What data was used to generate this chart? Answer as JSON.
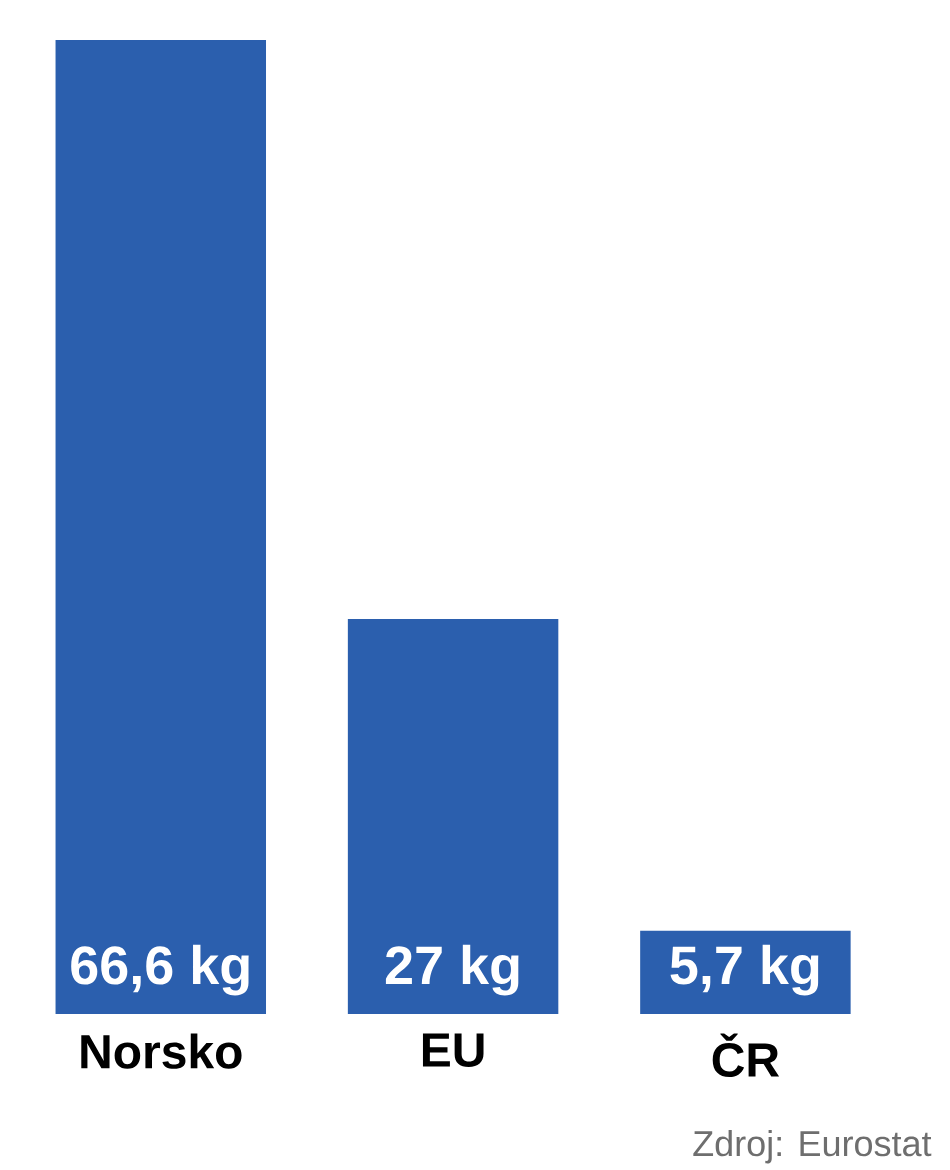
{
  "chart_data": {
    "type": "bar",
    "categories": [
      "Norsko",
      "EU",
      "ČR"
    ],
    "values": [
      66.6,
      27,
      5.7
    ],
    "value_labels": [
      "66,6 kg",
      "27 kg",
      "5,7 kg"
    ],
    "color": "#2b5fae",
    "annotations": [
      "Zdroj: Eurostat"
    ]
  }
}
